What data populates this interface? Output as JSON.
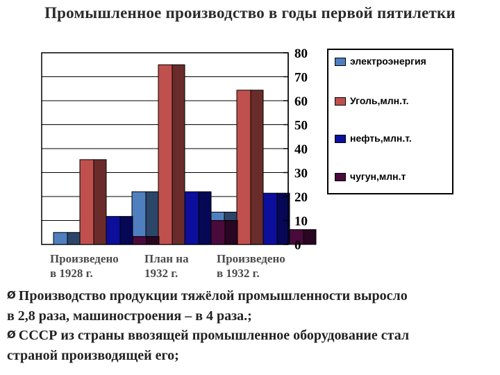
{
  "title": "Промышленное производство в годы первой пятилетки",
  "chart_data": {
    "type": "bar",
    "style": "3d-clustered",
    "categories": [
      [
        "Произведено",
        "в 1928 г."
      ],
      [
        "План на",
        "1932 г."
      ],
      [
        "Произведено",
        "в 1932 г."
      ]
    ],
    "series": [
      {
        "name": "электроэнергия",
        "color": "#4f7fbf",
        "values": [
          5,
          22,
          13.5
        ]
      },
      {
        "name": "Уголь,млн.т.",
        "color": "#c0504d",
        "values": [
          35.4,
          75,
          64.4
        ]
      },
      {
        "name": "нефть,млн.т.",
        "color": "#0b0f9c",
        "values": [
          11.7,
          22,
          21.4
        ]
      },
      {
        "name": "чугун,млн.т",
        "color": "#4a0a3c",
        "values": [
          3.3,
          10,
          6.2
        ]
      }
    ],
    "ylim": [
      0,
      80
    ],
    "yticks": [
      0,
      10,
      20,
      30,
      40,
      50,
      60,
      70,
      80
    ],
    "y_axis_side": "right",
    "grid": true,
    "legend_position": "right"
  },
  "bullets": [
    {
      "marker": "Ø",
      "lines": [
        "Производство продукции тяжёлой промышленности выросло",
        "в 2,8 раза, машиностроения – в 4 раза.;"
      ]
    },
    {
      "marker": "Ø",
      "lines": [
        "СССР из страны ввозящей промышленное оборудование стал",
        "страной производящей его;"
      ]
    }
  ]
}
